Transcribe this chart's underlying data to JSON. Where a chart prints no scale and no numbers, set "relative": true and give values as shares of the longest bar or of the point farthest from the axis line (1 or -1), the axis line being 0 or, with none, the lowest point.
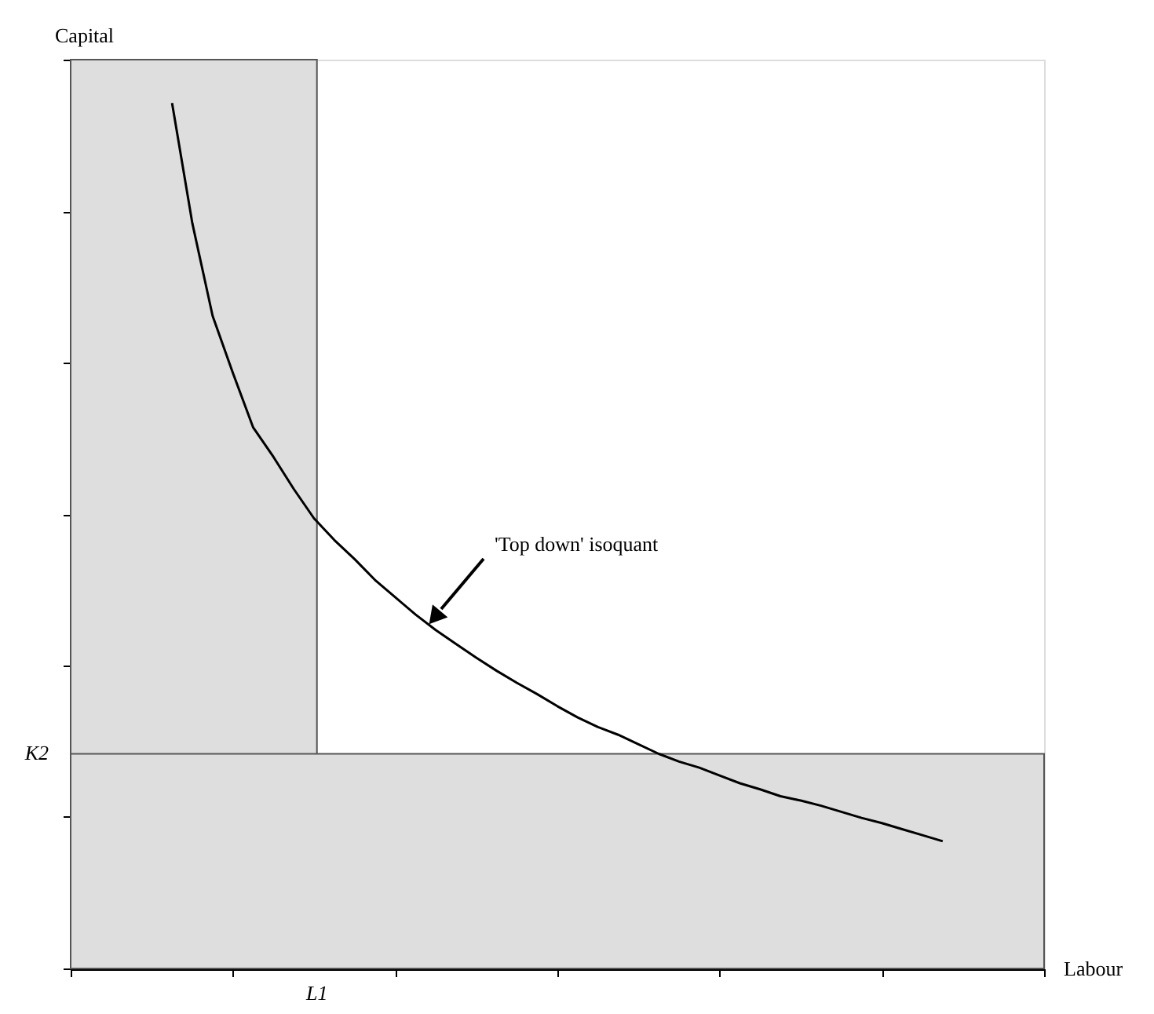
{
  "chart_data": {
    "type": "line",
    "relative": true,
    "xlabel": "Labour",
    "categories": [
      null,
      null,
      null,
      null,
      null,
      null,
      null,
      null,
      null,
      null,
      null,
      null,
      null,
      null,
      null,
      null,
      null,
      null,
      null,
      null,
      null,
      null,
      null,
      null,
      null,
      null,
      null,
      null,
      null,
      null,
      null,
      null,
      null,
      null,
      null,
      null,
      null,
      null,
      null,
      null,
      null,
      null,
      null,
      null,
      null,
      null,
      null,
      null,
      null
    ],
    "series": [
      {
        "color": "#000000",
        "values": [
          null,
          null,
          null,
          null,
          null,
          1.0,
          0.861,
          0.754,
          0.688,
          0.625,
          0.591,
          0.554,
          0.52,
          0.495,
          0.473,
          0.449,
          0.429,
          0.409,
          0.391,
          0.375,
          0.359,
          0.344,
          0.33,
          0.317,
          0.303,
          0.29,
          0.279,
          0.27,
          0.259,
          0.248,
          0.239,
          0.232,
          0.223,
          0.214,
          0.207,
          0.199,
          0.194,
          0.188,
          0.181,
          0.174,
          0.168,
          0.161,
          0.154,
          0.147,
          null,
          null,
          null,
          null,
          null
        ]
      }
    ],
    "bands": [
      {
        "axis": "y",
        "from": 0,
        "to": 0.248,
        "label": "K2",
        "color": "#dedede"
      }
    ],
    "annotations": [
      "'Top down' isoquant",
      "L1",
      "Capital"
    ],
    "grid": false,
    "line_style": "solid",
    "marker": "none"
  }
}
